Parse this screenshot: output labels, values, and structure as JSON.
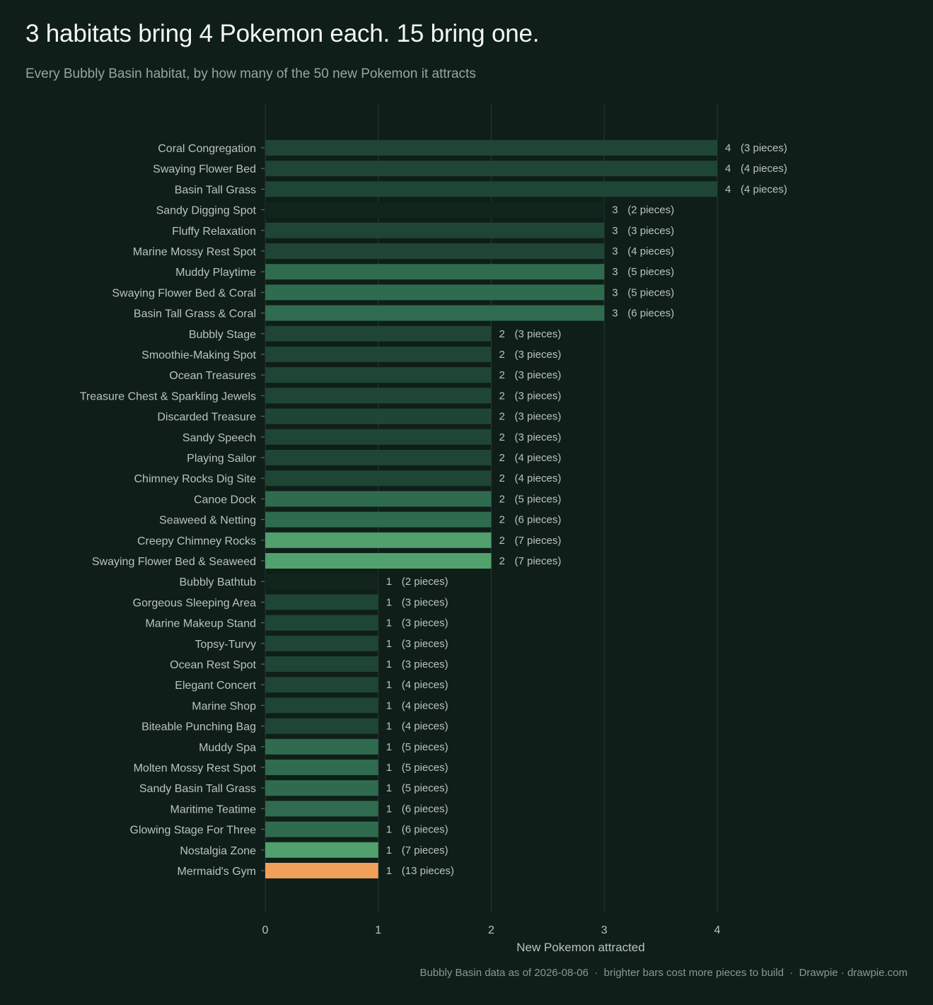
{
  "title": "3 habitats bring 4 Pokemon each. 15 bring one.",
  "subtitle": "Every Bubbly Basin habitat, by how many of the 50 new Pokemon it attracts",
  "footer": "Bubbly Basin data as of 2026-08-06  ·  brighter bars cost more pieces to build  ·  Drawpie · drawpie.com",
  "colors": {
    "background": "#0f1e18",
    "pieces_2": "#11251d",
    "pieces_3_4": "#1f4535",
    "pieces_5_6": "#2f6b4f",
    "pieces_7": "#52a06e",
    "pieces_13": "#f0a058",
    "gridline": "#23352d",
    "label_text": "#b9c3be"
  },
  "chart_data": {
    "type": "bar",
    "orientation": "horizontal",
    "xlabel": "New Pokemon attracted",
    "xlim": [
      0,
      4
    ],
    "xticks": [
      0,
      1,
      2,
      3,
      4
    ],
    "grid": true,
    "categories": [
      "Coral Congregation",
      "Swaying Flower Bed",
      "Basin Tall Grass",
      "Sandy Digging Spot",
      "Fluffy Relaxation",
      "Marine Mossy Rest Spot",
      "Muddy Playtime",
      "Swaying Flower Bed & Coral",
      "Basin Tall Grass & Coral",
      "Bubbly Stage",
      "Smoothie-Making Spot",
      "Ocean Treasures",
      "Treasure Chest & Sparkling Jewels",
      "Discarded Treasure",
      "Sandy Speech",
      "Playing Sailor",
      "Chimney Rocks Dig Site",
      "Canoe Dock",
      "Seaweed & Netting",
      "Creepy Chimney Rocks",
      "Swaying Flower Bed & Seaweed",
      "Bubbly Bathtub",
      "Gorgeous Sleeping Area",
      "Marine Makeup Stand",
      "Topsy-Turvy",
      "Ocean Rest Spot",
      "Elegant Concert",
      "Marine Shop",
      "Biteable Punching Bag",
      "Muddy Spa",
      "Molten Mossy Rest Spot",
      "Sandy Basin Tall Grass",
      "Maritime Teatime",
      "Glowing Stage For Three",
      "Nostalgia Zone",
      "Mermaid's Gym"
    ],
    "values": [
      4,
      4,
      4,
      3,
      3,
      3,
      3,
      3,
      3,
      2,
      2,
      2,
      2,
      2,
      2,
      2,
      2,
      2,
      2,
      2,
      2,
      1,
      1,
      1,
      1,
      1,
      1,
      1,
      1,
      1,
      1,
      1,
      1,
      1,
      1,
      1
    ],
    "pieces": [
      3,
      4,
      4,
      2,
      3,
      4,
      5,
      5,
      6,
      3,
      3,
      3,
      3,
      3,
      3,
      4,
      4,
      5,
      6,
      7,
      7,
      2,
      3,
      3,
      3,
      3,
      4,
      4,
      4,
      5,
      5,
      5,
      6,
      6,
      7,
      13
    ],
    "value_labels": [
      "4",
      "4",
      "4",
      "3",
      "3",
      "3",
      "3",
      "3",
      "3",
      "2",
      "2",
      "2",
      "2",
      "2",
      "2",
      "2",
      "2",
      "2",
      "2",
      "2",
      "2",
      "1",
      "1",
      "1",
      "1",
      "1",
      "1",
      "1",
      "1",
      "1",
      "1",
      "1",
      "1",
      "1",
      "1",
      "1"
    ],
    "piece_labels": [
      "(3 pieces)",
      "(4 pieces)",
      "(4 pieces)",
      "(2 pieces)",
      "(3 pieces)",
      "(4 pieces)",
      "(5 pieces)",
      "(5 pieces)",
      "(6 pieces)",
      "(3 pieces)",
      "(3 pieces)",
      "(3 pieces)",
      "(3 pieces)",
      "(3 pieces)",
      "(3 pieces)",
      "(4 pieces)",
      "(4 pieces)",
      "(5 pieces)",
      "(6 pieces)",
      "(7 pieces)",
      "(7 pieces)",
      "(2 pieces)",
      "(3 pieces)",
      "(3 pieces)",
      "(3 pieces)",
      "(3 pieces)",
      "(4 pieces)",
      "(4 pieces)",
      "(4 pieces)",
      "(5 pieces)",
      "(5 pieces)",
      "(5 pieces)",
      "(6 pieces)",
      "(6 pieces)",
      "(7 pieces)",
      "(13 pieces)"
    ]
  }
}
